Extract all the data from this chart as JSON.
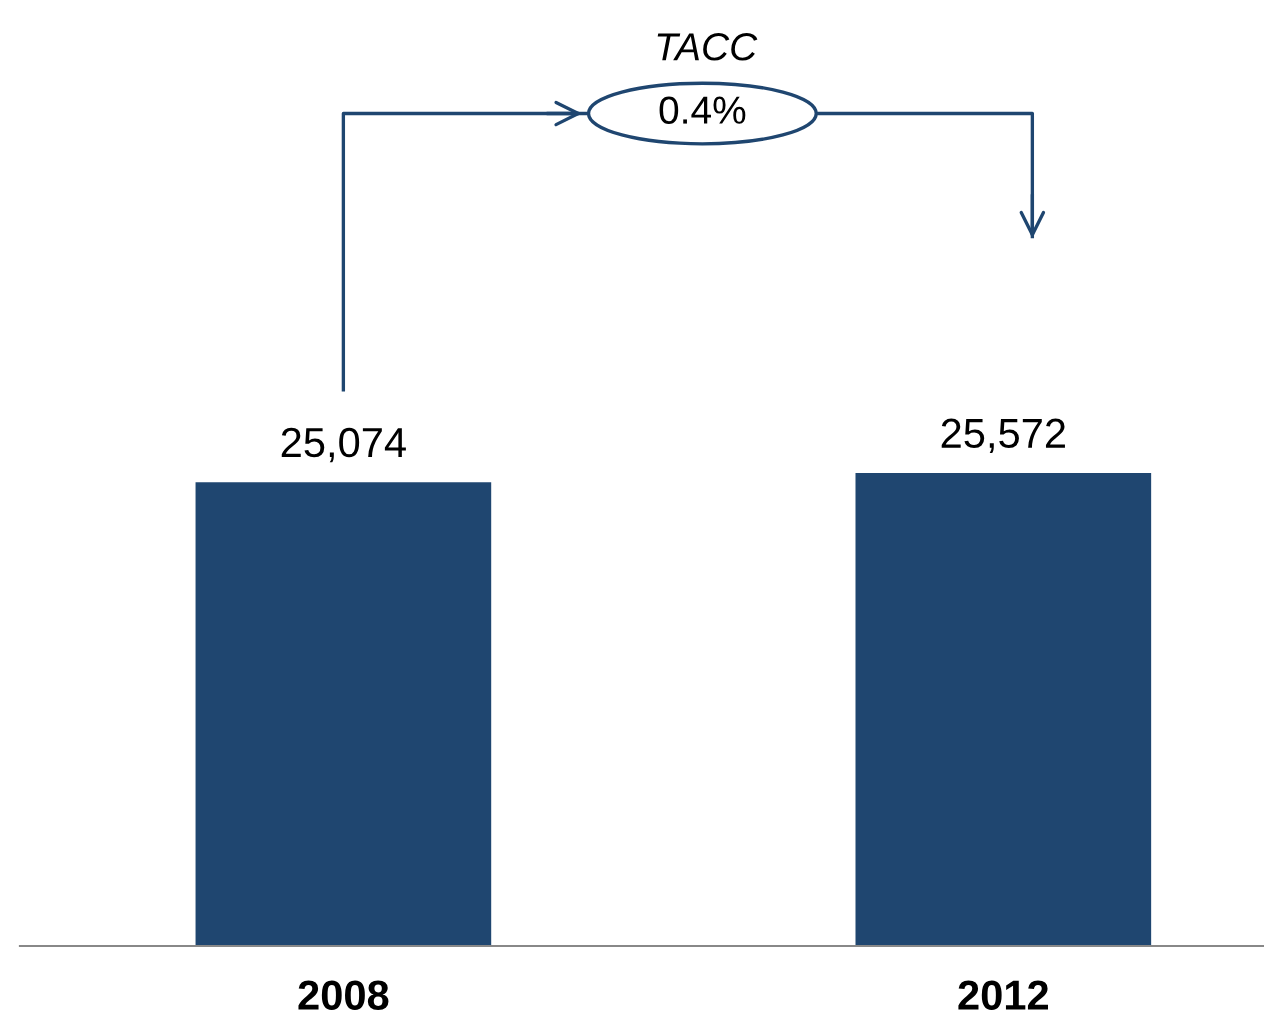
{
  "chart_data": {
    "type": "bar",
    "categories": [
      "2008",
      "2012"
    ],
    "values": [
      25074,
      25572
    ],
    "color": "#1f4670",
    "data_labels": true,
    "value_labels": [
      "25,074",
      "25,572"
    ],
    "annotations": [
      "TACC",
      "0.4%"
    ],
    "grid": false,
    "legend": false,
    "tick_labels": "x"
  }
}
